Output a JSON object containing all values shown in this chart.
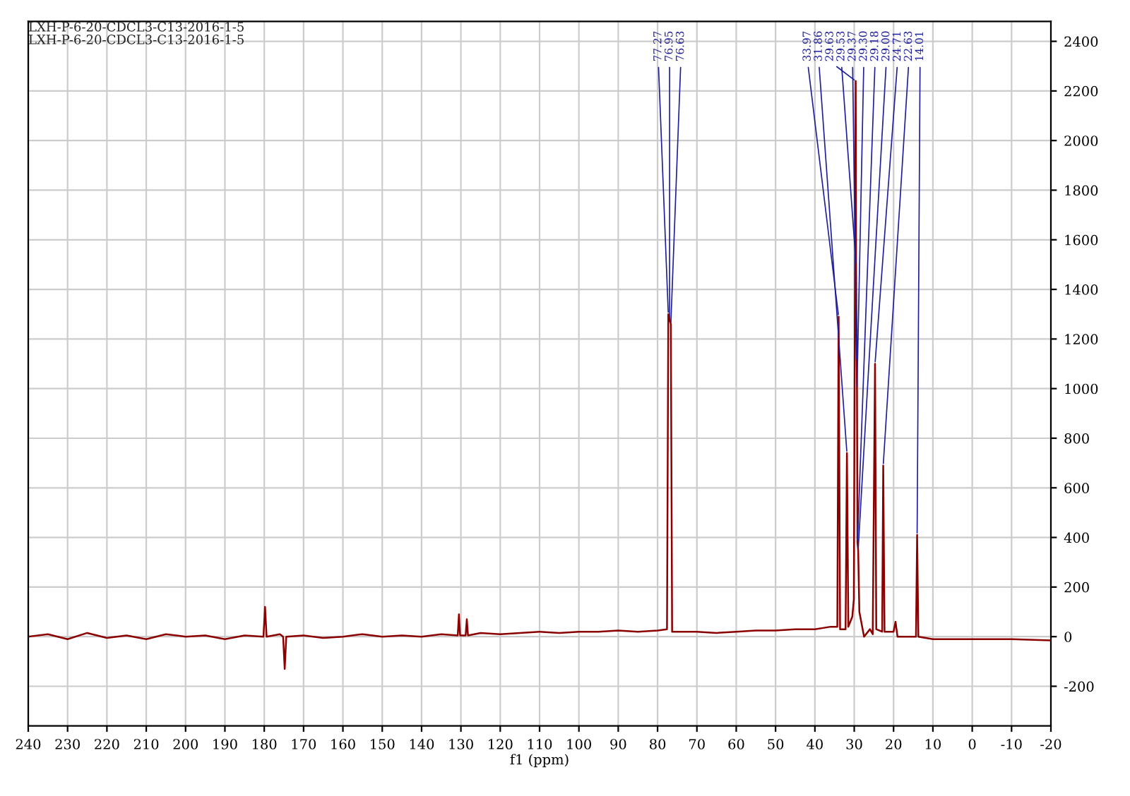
{
  "chart_data": {
    "type": "line",
    "xlabel": "f1 (ppm)",
    "xlim": [
      240,
      -20
    ],
    "xticks": [
      240,
      230,
      220,
      210,
      200,
      190,
      180,
      170,
      160,
      150,
      140,
      130,
      120,
      110,
      100,
      90,
      80,
      70,
      60,
      50,
      40,
      30,
      20,
      10,
      0,
      -10,
      -20
    ],
    "ylim": [
      -360,
      2480
    ],
    "yticks": [
      -200,
      0,
      200,
      400,
      600,
      800,
      1000,
      1200,
      1400,
      1600,
      1800,
      2000,
      2200,
      2400
    ],
    "grid": true,
    "marker": "none",
    "line_style": "solid",
    "series": [
      {
        "color": "#8b0000",
        "x": [
          240,
          235,
          230,
          225,
          220,
          215,
          210,
          205,
          200,
          195,
          190,
          185,
          180.2,
          179.8,
          179.4,
          176,
          175.2,
          174.8,
          174.4,
          170,
          165,
          160,
          155,
          150,
          145,
          140,
          135,
          130.8,
          130.5,
          130.2,
          128.8,
          128.5,
          128.2,
          125,
          120,
          115,
          110,
          105,
          100,
          95,
          90,
          85,
          80,
          77.6,
          77.27,
          76.95,
          76.63,
          76.3,
          75,
          70,
          65,
          60,
          55,
          50,
          45,
          40,
          36,
          34.3,
          33.97,
          33.6,
          32.2,
          31.86,
          31.5,
          30.5,
          30.1,
          29.63,
          29.53,
          29.37,
          29.3,
          29.18,
          29.0,
          28.7,
          27.5,
          26,
          25.3,
          24.71,
          24.4,
          22.9,
          22.63,
          22.3,
          20,
          19.5,
          19,
          14.3,
          14.01,
          13.7,
          10,
          0,
          -10,
          -20
        ],
        "values": [
          0,
          10,
          -10,
          15,
          -5,
          5,
          -10,
          10,
          0,
          5,
          -10,
          5,
          0,
          120,
          0,
          10,
          0,
          -130,
          0,
          5,
          -5,
          0,
          10,
          0,
          5,
          0,
          10,
          5,
          90,
          5,
          5,
          70,
          5,
          15,
          10,
          15,
          20,
          15,
          20,
          20,
          25,
          20,
          25,
          30,
          1300,
          1280,
          1260,
          20,
          20,
          20,
          15,
          20,
          25,
          25,
          30,
          30,
          40,
          40,
          1290,
          30,
          30,
          740,
          40,
          80,
          150,
          2240,
          1500,
          1110,
          1000,
          380,
          350,
          100,
          0,
          30,
          10,
          1100,
          30,
          20,
          690,
          20,
          20,
          60,
          0,
          0,
          410,
          0,
          -10,
          -10,
          -10,
          -15
        ]
      }
    ],
    "annotations": [
      "LXH-P-6-20-CDCL3-C13-2016-1-5",
      "LXH-P-6-20-CDCL3-C13-2016-1-5",
      {
        "text": "77.27",
        "x": 77.27,
        "y": 1300
      },
      {
        "text": "76.95",
        "x": 76.95,
        "y": 1280
      },
      {
        "text": "76.63",
        "x": 76.63,
        "y": 1260
      },
      {
        "text": "33.97",
        "x": 33.97,
        "y": 1290
      },
      {
        "text": "31.86",
        "x": 31.86,
        "y": 740
      },
      {
        "text": "29.63",
        "x": 29.63,
        "y": 2240
      },
      {
        "text": "29.53",
        "x": 29.53,
        "y": 1500
      },
      {
        "text": "29.37",
        "x": 29.37,
        "y": 1110
      },
      {
        "text": "29.30",
        "x": 29.3,
        "y": 1000
      },
      {
        "text": "29.18",
        "x": 29.18,
        "y": 380
      },
      {
        "text": "29.00",
        "x": 29.0,
        "y": 350
      },
      {
        "text": "24.71",
        "x": 24.71,
        "y": 1100
      },
      {
        "text": "22.63",
        "x": 22.63,
        "y": 690
      },
      {
        "text": "14.01",
        "x": 14.01,
        "y": 410
      }
    ]
  }
}
